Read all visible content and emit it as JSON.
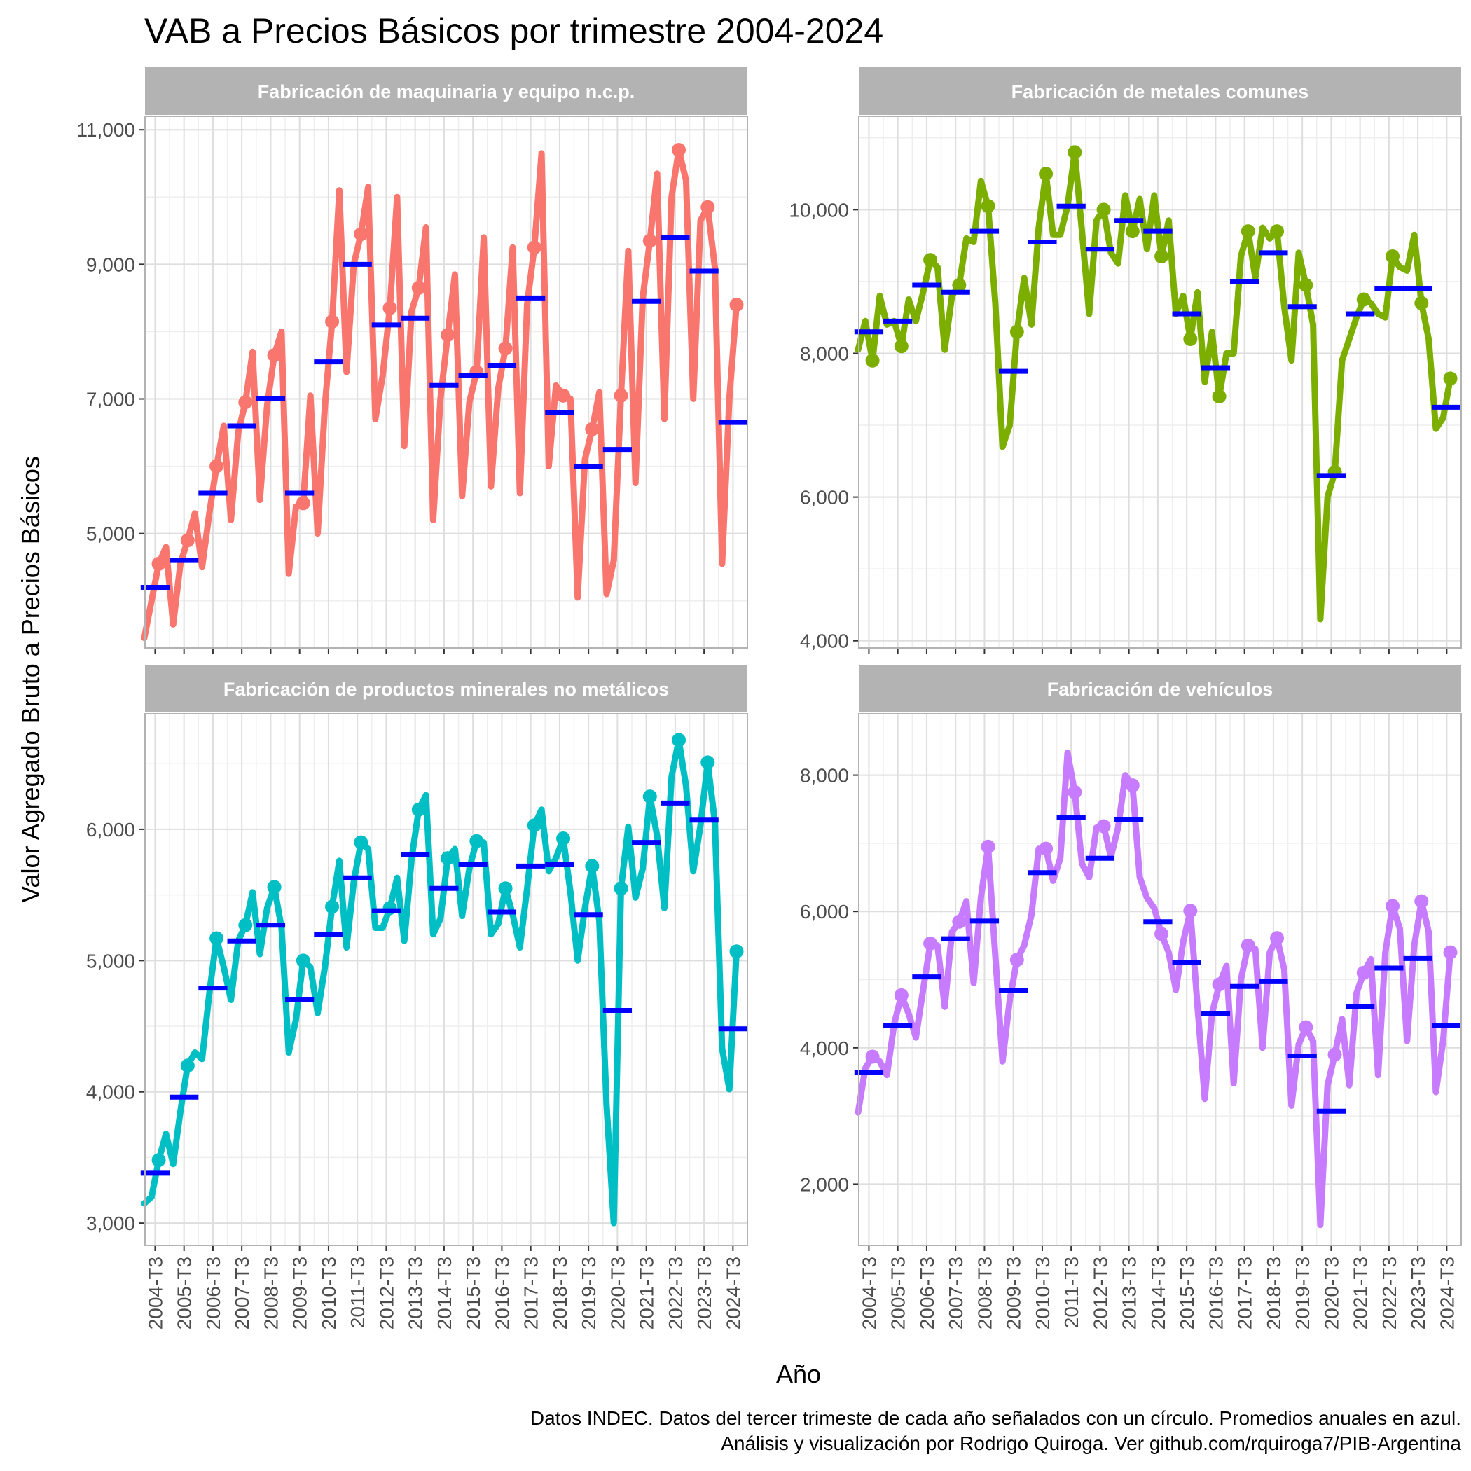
{
  "colors": {
    "avg_line": "#0000ff",
    "strip_bg": "#b3b3b3",
    "grid_major": "#dedede",
    "grid_minor": "#efefef",
    "panel_border": "#b3b3b3"
  },
  "chart_data": {
    "type": "line",
    "title": "VAB a Precios Básicos por trimestre 2004-2024",
    "xlabel": "Año",
    "ylabel": "Valor Agregado Bruto a Precios Básicos",
    "caption_lines": [
      "Datos INDEC. Datos del tercer trimeste de cada año señalados con un círculo. Promedios anuales en azul.",
      "Análisis y visualización por Rodrigo Quiroga. Ver github.com/rquiroga7/PIB-Argentina"
    ],
    "x_tick_labels": [
      "2004-T3",
      "2005-T3",
      "2006-T3",
      "2007-T3",
      "2008-T3",
      "2009-T3",
      "2010-T3",
      "2011-T3",
      "2012-T3",
      "2013-T3",
      "2014-T3",
      "2015-T3",
      "2016-T3",
      "2017-T3",
      "2018-T3",
      "2019-T3",
      "2020-T3",
      "2021-T3",
      "2022-T3",
      "2023-T3",
      "2024-T3"
    ],
    "grid": true,
    "facets": [
      {
        "name": "Fabricación de maquinaria y equipo n.c.p.",
        "color": "#f8766d",
        "ylim": [
          3300,
          11200
        ],
        "y_ticks": [
          5000,
          7000,
          9000,
          11000
        ],
        "y_tick_labels": [
          "5,000",
          "7,000",
          "9,000",
          "11,000"
        ],
        "quarterly": [
          [
            3450,
            4000,
            4550,
            4800
          ],
          [
            3650,
            4550,
            4900,
            5300
          ],
          [
            4500,
            5300,
            6000,
            6600
          ],
          [
            5200,
            6500,
            6950,
            7700
          ],
          [
            5500,
            6900,
            7650,
            8000
          ],
          [
            4400,
            5400,
            5450,
            7050
          ],
          [
            5000,
            6900,
            8150,
            10100
          ],
          [
            7400,
            9000,
            9450,
            10150
          ],
          [
            6700,
            7350,
            8350,
            10000
          ],
          [
            6300,
            8300,
            8650,
            9550
          ],
          [
            5200,
            7000,
            7950,
            8850
          ],
          [
            5550,
            6950,
            7400,
            9400
          ],
          [
            5700,
            7150,
            7750,
            9250
          ],
          [
            5600,
            8400,
            9250,
            10650
          ],
          [
            6000,
            7200,
            7050,
            7000
          ],
          [
            4050,
            6100,
            6550,
            7100
          ],
          [
            4100,
            4600,
            7050,
            9200
          ],
          [
            5750,
            8500,
            9350,
            10350
          ],
          [
            6700,
            10000,
            10700,
            10250
          ],
          [
            7000,
            9650,
            9850,
            8950
          ],
          [
            4550,
            7000,
            8400
          ]
        ],
        "annual_avg": [
          4200,
          4600,
          5600,
          6600,
          7000,
          5600,
          7550,
          9000,
          8100,
          8200,
          7200,
          7350,
          7500,
          8500,
          6800,
          6000,
          6250,
          8450,
          9400,
          8900,
          6650
        ]
      },
      {
        "name": "Fabricación de metales comunes",
        "color": "#7cae00",
        "ylim": [
          3900,
          11300
        ],
        "y_ticks": [
          4000,
          6000,
          8000,
          10000
        ],
        "y_tick_labels": [
          "4,000",
          "6,000",
          "8,000",
          "10,000"
        ],
        "quarterly": [
          [
            8050,
            8450,
            7900,
            8800
          ],
          [
            8400,
            8450,
            8100,
            8750
          ],
          [
            8450,
            8850,
            9300,
            9200
          ],
          [
            8050,
            8800,
            8950,
            9600
          ],
          [
            9550,
            10400,
            10050,
            8700
          ],
          [
            6700,
            7000,
            8300,
            9050
          ],
          [
            8400,
            9750,
            10500,
            9650
          ],
          [
            9650,
            10050,
            10800,
            9700
          ],
          [
            8550,
            9850,
            10000,
            9400
          ],
          [
            9250,
            10200,
            9700,
            10150
          ],
          [
            9450,
            10200,
            9350,
            9850
          ],
          [
            8550,
            8800,
            8200,
            8850
          ],
          [
            7600,
            8300,
            7400,
            8000
          ],
          [
            8000,
            9350,
            9700,
            9050
          ],
          [
            9750,
            9600,
            9700,
            8650
          ],
          [
            7900,
            9400,
            8950,
            8400
          ],
          [
            4300,
            6000,
            6350,
            7900
          ],
          [
            8200,
            8500,
            8750,
            8700
          ],
          [
            8550,
            8500,
            9350,
            9200
          ],
          [
            9150,
            9650,
            8700,
            8200
          ],
          [
            6950,
            7100,
            7650
          ]
        ],
        "annual_avg": [
          8300,
          8450,
          8950,
          8850,
          9700,
          7750,
          9550,
          10050,
          9450,
          9850,
          9700,
          8550,
          7800,
          9000,
          9400,
          8650,
          6300,
          8550,
          8900,
          8900,
          7250
        ]
      },
      {
        "name": "Fabricación de productos minerales no metálicos",
        "color": "#00bfc4",
        "ylim": [
          2830,
          6880
        ],
        "y_ticks": [
          3000,
          4000,
          5000,
          6000
        ],
        "y_tick_labels": [
          "3,000",
          "4,000",
          "5,000",
          "6,000"
        ],
        "quarterly": [
          [
            3150,
            3200,
            3480,
            3680
          ],
          [
            3450,
            3850,
            4200,
            4300
          ],
          [
            4250,
            4750,
            5170,
            4950
          ],
          [
            4700,
            5150,
            5270,
            5520
          ],
          [
            5050,
            5400,
            5560,
            5250
          ],
          [
            4300,
            4550,
            5000,
            4950
          ],
          [
            4600,
            4950,
            5410,
            5760
          ],
          [
            5100,
            5600,
            5900,
            5850
          ],
          [
            5250,
            5250,
            5400,
            5630
          ],
          [
            5150,
            5770,
            6150,
            6260
          ],
          [
            5200,
            5320,
            5780,
            5850
          ],
          [
            5340,
            5700,
            5910,
            5900
          ],
          [
            5200,
            5280,
            5550,
            5350
          ],
          [
            5100,
            5550,
            6030,
            6150
          ],
          [
            5680,
            5780,
            5930,
            5520
          ],
          [
            5000,
            5400,
            5720,
            5300
          ],
          [
            3900,
            3000,
            5550,
            6020
          ],
          [
            5480,
            5700,
            6250,
            5950
          ],
          [
            5400,
            6400,
            6680,
            6330
          ],
          [
            5680,
            6030,
            6510,
            6050
          ],
          [
            4330,
            4020,
            5070
          ]
        ],
        "annual_avg": [
          3380,
          3960,
          4790,
          5150,
          5270,
          4700,
          5200,
          5630,
          5380,
          5810,
          5550,
          5730,
          5370,
          5720,
          5730,
          5350,
          4620,
          5900,
          6200,
          6070,
          4480
        ]
      },
      {
        "name": "Fabricación de vehículos",
        "color": "#c77cff",
        "ylim": [
          1100,
          8900
        ],
        "y_ticks": [
          2000,
          4000,
          6000,
          8000
        ],
        "y_tick_labels": [
          "2,000",
          "4,000",
          "6,000",
          "8,000"
        ],
        "quarterly": [
          [
            3050,
            3700,
            3870,
            3800
          ],
          [
            3600,
            4350,
            4770,
            4500
          ],
          [
            4150,
            4850,
            5530,
            5500
          ],
          [
            4600,
            5700,
            5850,
            6150
          ],
          [
            4950,
            6200,
            6950,
            5350
          ],
          [
            3800,
            4700,
            5290,
            5500
          ],
          [
            5950,
            6920,
            6920,
            6450
          ],
          [
            6780,
            8330,
            7750,
            6700
          ],
          [
            6500,
            7230,
            7250,
            6800
          ],
          [
            7230,
            8000,
            7850,
            6500
          ],
          [
            6200,
            6050,
            5670,
            5400
          ],
          [
            4850,
            5550,
            6010,
            4600
          ],
          [
            3250,
            4500,
            4930,
            5200
          ],
          [
            3480,
            5000,
            5500,
            5450
          ],
          [
            4000,
            5400,
            5610,
            5150
          ],
          [
            3150,
            4050,
            4300,
            4100
          ],
          [
            1400,
            3450,
            3900,
            4420
          ],
          [
            3450,
            4800,
            5100,
            5300
          ],
          [
            3600,
            5400,
            6080,
            5750
          ],
          [
            4100,
            5500,
            6150,
            5700
          ],
          [
            3350,
            4100,
            5400
          ]
        ],
        "annual_avg": [
          3640,
          4330,
          5040,
          5600,
          5860,
          4840,
          6570,
          7380,
          6780,
          7350,
          5850,
          5250,
          4500,
          4900,
          4970,
          3880,
          3070,
          4600,
          5170,
          5310,
          4330
        ]
      }
    ]
  }
}
